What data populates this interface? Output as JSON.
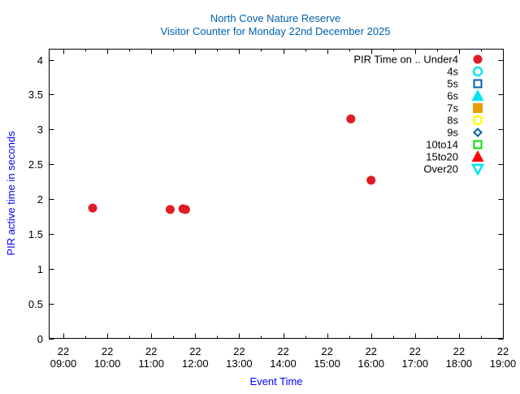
{
  "chart_data": {
    "type": "scatter",
    "title": "North Cove Nature Reserve",
    "subtitle": "Visitor Counter for Monday 22nd December 2025",
    "xlabel": "Event Time",
    "ylabel": "PIR active time in seconds",
    "xlim_hours": [
      8.6667,
      19.0
    ],
    "ylim": [
      0,
      4.1
    ],
    "x_ticks": [
      {
        "value": 9,
        "day": "22",
        "time": "09:00"
      },
      {
        "value": 10,
        "day": "22",
        "time": "10:00"
      },
      {
        "value": 11,
        "day": "22",
        "time": "11:00"
      },
      {
        "value": 12,
        "day": "22",
        "time": "12:00"
      },
      {
        "value": 13,
        "day": "22",
        "time": "13:00"
      },
      {
        "value": 14,
        "day": "22",
        "time": "14:00"
      },
      {
        "value": 15,
        "day": "22",
        "time": "15:00"
      },
      {
        "value": 16,
        "day": "22",
        "time": "16:00"
      },
      {
        "value": 17,
        "day": "22",
        "time": "17:00"
      },
      {
        "value": 18,
        "day": "22",
        "time": "18:00"
      },
      {
        "value": 19,
        "day": "22",
        "time": "19:00"
      }
    ],
    "y_ticks": [
      {
        "value": 0,
        "label": "0"
      },
      {
        "value": 0.5,
        "label": "0.5"
      },
      {
        "value": 1,
        "label": "1"
      },
      {
        "value": 1.5,
        "label": "1.5"
      },
      {
        "value": 2,
        "label": "2"
      },
      {
        "value": 2.5,
        "label": "2.5"
      },
      {
        "value": 3,
        "label": "3"
      },
      {
        "value": 3.5,
        "label": "3.5"
      },
      {
        "value": 4,
        "label": "4"
      }
    ],
    "grid": false,
    "legend_position": "top-right",
    "series": [
      {
        "name": "PIR Time on .. Under4",
        "marker": "circle-filled",
        "color": "#e01c24",
        "points": [
          {
            "time": "09:40",
            "x": 9.667,
            "y": 1.87
          },
          {
            "time": "11:26",
            "x": 11.43,
            "y": 1.85
          },
          {
            "time": "11:43",
            "x": 11.72,
            "y": 1.86
          },
          {
            "time": "11:47",
            "x": 11.78,
            "y": 1.85
          },
          {
            "time": "15:32",
            "x": 15.54,
            "y": 3.15
          },
          {
            "time": "16:00",
            "x": 16.0,
            "y": 2.27
          }
        ]
      },
      {
        "name": "4s",
        "marker": "circle-open",
        "color": "#00e5ee",
        "points": []
      },
      {
        "name": "5s",
        "marker": "square-open",
        "color": "#0060ad",
        "points": []
      },
      {
        "name": "6s",
        "marker": "triangle-filled",
        "color": "#00e5ee",
        "points": []
      },
      {
        "name": "7s",
        "marker": "square-filled",
        "color": "#e69f00",
        "points": []
      },
      {
        "name": "8s",
        "marker": "circle-open",
        "color": "#ffff00",
        "points": []
      },
      {
        "name": "9s",
        "marker": "diamond-open",
        "color": "#0060ad",
        "points": []
      },
      {
        "name": "10to14",
        "marker": "square-open",
        "color": "#00e000",
        "points": []
      },
      {
        "name": "15to20",
        "marker": "triangle-filled",
        "color": "#ff0000",
        "points": []
      },
      {
        "name": "Over20",
        "marker": "triangle-down-open",
        "color": "#00e5ee",
        "points": []
      }
    ]
  }
}
